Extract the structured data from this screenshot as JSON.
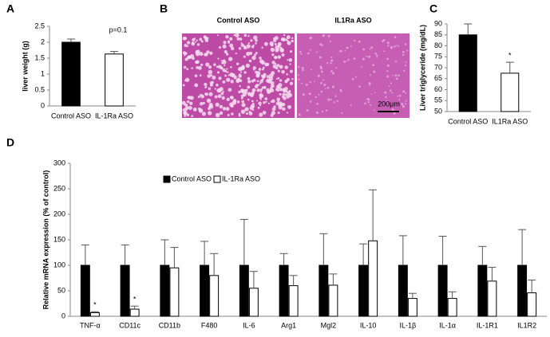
{
  "chart_data": [
    {
      "type": "bar",
      "label": "A",
      "ylabel": "liver weight (g)",
      "categories": [
        "Control ASO",
        "IL-1Ra ASO"
      ],
      "values": [
        2.0,
        1.63
      ],
      "errors": [
        0.1,
        0.08
      ],
      "colors": [
        "#000000",
        "#ffffff"
      ],
      "ylim": [
        0,
        2.5
      ],
      "yticks": [
        0,
        0.5,
        1,
        1.5,
        2,
        2.5
      ],
      "annotations": [
        "p=0.1"
      ]
    },
    {
      "type": "image",
      "label": "B",
      "panels": [
        "Control ASO",
        "IL1Ra ASO"
      ],
      "scale_label": "200μm"
    },
    {
      "type": "bar",
      "label": "C",
      "ylabel": "Liver triglyceride (mg/dL)",
      "categories": [
        "Control ASO",
        "IL1Ra ASO"
      ],
      "values": [
        85,
        67.5
      ],
      "errors": [
        5,
        5
      ],
      "colors": [
        "#000000",
        "#ffffff"
      ],
      "ylim": [
        50,
        90
      ],
      "yticks": [
        50,
        55,
        60,
        65,
        70,
        75,
        80,
        85,
        90
      ],
      "annotations": [
        "*"
      ]
    },
    {
      "type": "grouped_bar",
      "label": "D",
      "ylabel": "Relative  mRNA expression (% of control)",
      "categories": [
        "TNF-α",
        "CD11c",
        "CD11b",
        "F480",
        "IL-6",
        "Arg1",
        "Mgl2",
        "IL-10",
        "IL-1β",
        "IL-1α",
        "IL-1R1",
        "IL1R2"
      ],
      "series": [
        {
          "name": "Control ASO",
          "color": "#000000",
          "values": [
            100,
            100,
            100,
            100,
            100,
            100,
            100,
            100,
            100,
            100,
            100,
            100
          ],
          "errors": [
            40,
            40,
            50,
            47,
            90,
            23,
            62,
            42,
            58,
            57,
            37,
            70
          ]
        },
        {
          "name": "IL-1Ra ASO",
          "color": "#ffffff",
          "values": [
            7,
            14,
            95,
            80,
            55,
            60,
            61,
            148,
            35,
            35,
            69,
            46
          ],
          "errors": [
            2,
            6,
            40,
            43,
            33,
            20,
            22,
            100,
            10,
            13,
            27,
            25
          ]
        }
      ],
      "ylim": [
        0,
        300
      ],
      "yticks": [
        0,
        50,
        100,
        150,
        200,
        250,
        300
      ],
      "annotations": [
        "*",
        "*"
      ]
    }
  ]
}
